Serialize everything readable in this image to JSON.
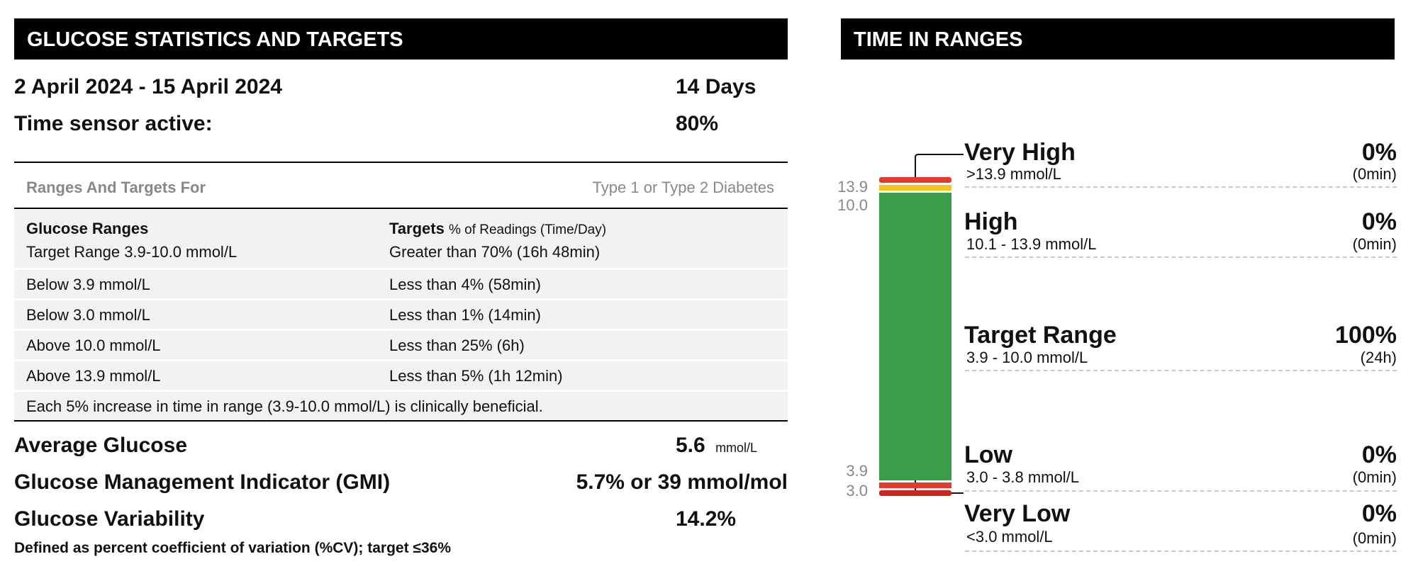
{
  "left": {
    "header": "GLUCOSE STATISTICS AND TARGETS",
    "date_range": "2 April 2024 - 15 April 2024",
    "days": "14 Days",
    "sensor_label": "Time sensor active:",
    "sensor_value": "80%",
    "ranges_for_label": "Ranges And Targets For",
    "ranges_for_value": "Type 1 or Type 2 Diabetes",
    "col_ranges": "Glucose Ranges",
    "col_targets": "Targets",
    "col_targets_sub": "% of Readings (Time/Day)",
    "rows": [
      {
        "range": "Target Range 3.9-10.0 mmol/L",
        "target": "Greater than 70% (16h 48min)"
      },
      {
        "range": "Below 3.9 mmol/L",
        "target": "Less than 4% (58min)"
      },
      {
        "range": "Below 3.0 mmol/L",
        "target": "Less than 1% (14min)"
      },
      {
        "range": "Above 10.0 mmol/L",
        "target": "Less than 25% (6h)"
      },
      {
        "range": "Above 13.9 mmol/L",
        "target": "Less than 5% (1h 12min)"
      }
    ],
    "note": "Each 5% increase in time in range (3.9-10.0 mmol/L) is clinically beneficial.",
    "avg_label": "Average Glucose",
    "avg_value": "5.6",
    "avg_unit": "mmol/L",
    "gmi_label": "Glucose Management Indicator (GMI)",
    "gmi_value": "5.7% or 39 mmol/mol",
    "var_label": "Glucose Variability",
    "var_value": "14.2%",
    "var_note": "Defined as percent coefficient of variation (%CV); target ≤36%"
  },
  "right": {
    "header": "TIME IN RANGES"
  },
  "chart_data": {
    "type": "bar",
    "stacked": true,
    "ticks": [
      "13.9",
      "10.0",
      "3.9",
      "3.0"
    ],
    "series": [
      {
        "name": "Very High",
        "range": ">13.9 mmol/L",
        "percent": 0,
        "percent_label": "0%",
        "duration": "(0min)",
        "color": "#e43b2c"
      },
      {
        "name": "High",
        "range": "10.1 - 13.9 mmol/L",
        "percent": 0,
        "percent_label": "0%",
        "duration": "(0min)",
        "color": "#f6c51b"
      },
      {
        "name": "Target Range",
        "range": "3.9 - 10.0 mmol/L",
        "percent": 100,
        "percent_label": "100%",
        "duration": "(24h)",
        "color": "#3a9e48"
      },
      {
        "name": "Low",
        "range": "3.0 - 3.8 mmol/L",
        "percent": 0,
        "percent_label": "0%",
        "duration": "(0min)",
        "color": "#e43b2c"
      },
      {
        "name": "Very Low",
        "range": "<3.0 mmol/L",
        "percent": 0,
        "percent_label": "0%",
        "duration": "(0min)",
        "color": "#c8281e"
      }
    ]
  }
}
